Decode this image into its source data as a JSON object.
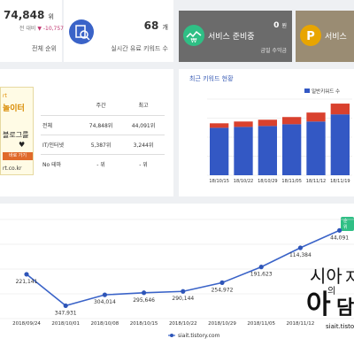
{
  "stats": {
    "rank": {
      "value": "74,848",
      "unit": "위",
      "sub_prefix": "전 대비",
      "delta": "▼ -10,757",
      "label": "전체 순위"
    },
    "keywords": {
      "value": "68",
      "unit": "개",
      "label": "실시간 유료 키워드 수"
    },
    "service1": {
      "label": "서비스 준비중",
      "value": "0",
      "unit": "원",
      "sublabel": "금일 수익금"
    },
    "service2": {
      "label": "서비스"
    }
  },
  "promo": {
    "top": "rt",
    "title": "놀이터",
    "line1": "블로그를",
    "heart": "♥",
    "button": "바로 가기",
    "footer": "rt.co.kr"
  },
  "rank_table": {
    "headers": [
      "",
      "주간",
      "최고"
    ],
    "rows": [
      [
        "전체",
        "74,848위",
        "44,091위"
      ],
      [
        "IT/인터넷",
        "5,387위",
        "3,244위"
      ],
      [
        "No 테마",
        "- 위",
        "- 위"
      ]
    ]
  },
  "keyword_chart": {
    "title": "최근 키워드 현황",
    "colors": {
      "series1": "#3358c4",
      "series2": "#d9412e"
    }
  },
  "chart_data": [
    {
      "type": "bar",
      "title": "최근 키워드 현황",
      "categories": [
        "18/10/15",
        "18/10/22",
        "18/10/29",
        "18/11/05",
        "18/11/12",
        "18/11/19"
      ],
      "series": [
        {
          "name": "일반키워드 수",
          "values": [
            53,
            54,
            55,
            57,
            60,
            68
          ]
        },
        {
          "values": [
            5,
            6,
            7,
            8,
            10,
            12
          ]
        }
      ],
      "ylim": [
        0,
        85
      ],
      "grid": true,
      "legend": "top-right"
    },
    {
      "type": "line",
      "categories": [
        "2018/09/24",
        "2018/10/01",
        "2018/10/08",
        "2018/10/15",
        "2018/10/22",
        "2018/10/29",
        "2018/11/05",
        "2018/11/12",
        "2018/11/19"
      ],
      "series": [
        {
          "name": "siait.tistory.com",
          "values": [
            221141,
            347931,
            304014,
            295646,
            290144,
            254972,
            191623,
            114384,
            44091
          ]
        }
      ],
      "data_labels": [
        "221,141",
        "347,931",
        "304,014",
        "295,646",
        "290,144",
        "254,972",
        "191,623",
        "114,384",
        "44,091"
      ],
      "inverted_y": true,
      "ylim": [
        0,
        400000
      ],
      "grid": true,
      "legend": "bottom-center"
    }
  ],
  "weekly_chip": "순위",
  "watermark": {
    "line1": "시아",
    "line2": "의",
    "line3": "지",
    "big": "아",
    "big2": "담",
    "url": "siait.tisto"
  }
}
